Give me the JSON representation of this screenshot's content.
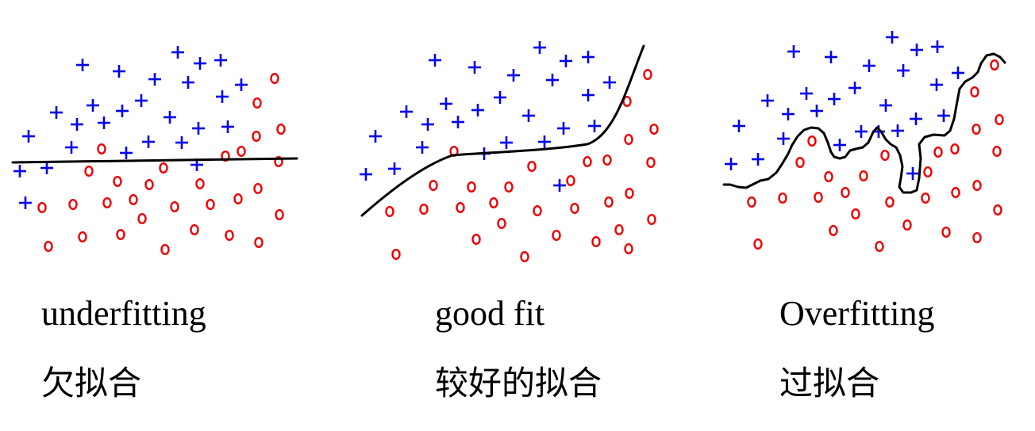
{
  "colors": {
    "plus": "#0000ee",
    "circle": "#ee0000",
    "boundary": "#000000"
  },
  "panels": [
    {
      "id": "underfitting",
      "caption_en": "underfitting",
      "caption_zh": "欠拟合"
    },
    {
      "id": "good-fit",
      "caption_en": "good fit",
      "caption_zh": "较好的拟合"
    },
    {
      "id": "overfitting",
      "caption_en": "Overfitting",
      "caption_zh": "过拟合"
    }
  ]
}
